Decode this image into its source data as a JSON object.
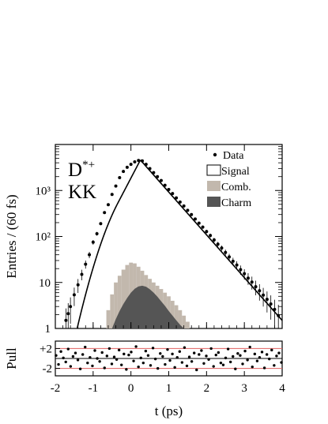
{
  "chart_data": {
    "type": "scatter",
    "xlabel": "t (ps)",
    "ylabel": "Entries / (60 fs)",
    "xlim": [
      -2,
      4
    ],
    "ylim": [
      1,
      10000
    ],
    "yscale": "log",
    "x_ticks": [
      -2,
      -1,
      0,
      1,
      2,
      3,
      4
    ],
    "y_ticks": [
      {
        "value": 1,
        "label": "1"
      },
      {
        "value": 10,
        "label": "10"
      },
      {
        "value": 100,
        "label": "10²"
      },
      {
        "value": 1000,
        "label": "10³"
      }
    ],
    "tag_line1": "D*+",
    "tag_line1_main": "D",
    "tag_line1_sup": "*+",
    "tag_line2": "KK",
    "legend": {
      "position": "top-right",
      "items": [
        {
          "label": "Data",
          "style": "marker"
        },
        {
          "label": "Signal",
          "style": "open-box"
        },
        {
          "label": "Comb.",
          "style": "filled",
          "color": "#c2b8ad"
        },
        {
          "label": "Charm",
          "style": "filled",
          "color": "#555555"
        }
      ]
    },
    "colors": {
      "data": "#000000",
      "fit": "#000000",
      "comb": "#c2b8ad",
      "charm": "#555555",
      "pull_lines": "#e06060"
    },
    "model": {
      "peak_t": 0.25,
      "peak_entries": 4600,
      "left_slope_decades_per_ps": 1.57,
      "right_slope_decades_per_ps": 0.93
    },
    "data_points": [
      {
        "t": -1.72,
        "y": 1.5
      },
      {
        "t": -1.66,
        "y": 2.1
      },
      {
        "t": -1.6,
        "y": 3.0
      },
      {
        "t": -1.5,
        "y": 5.4
      },
      {
        "t": -1.4,
        "y": 8.9
      },
      {
        "t": -1.3,
        "y": 15
      },
      {
        "t": -1.2,
        "y": 25
      },
      {
        "t": -1.1,
        "y": 40
      },
      {
        "t": -1.0,
        "y": 75
      },
      {
        "t": -0.9,
        "y": 115
      },
      {
        "t": -0.8,
        "y": 190
      },
      {
        "t": -0.7,
        "y": 330
      },
      {
        "t": -0.6,
        "y": 490
      },
      {
        "t": -0.5,
        "y": 820
      },
      {
        "t": -0.4,
        "y": 1250
      },
      {
        "t": -0.3,
        "y": 1900
      },
      {
        "t": -0.2,
        "y": 2600
      },
      {
        "t": -0.1,
        "y": 3200
      },
      {
        "t": 0.0,
        "y": 3700
      },
      {
        "t": 0.1,
        "y": 4200
      },
      {
        "t": 0.2,
        "y": 4500
      },
      {
        "t": 0.3,
        "y": 4400
      },
      {
        "t": 0.4,
        "y": 3700
      },
      {
        "t": 0.5,
        "y": 3000
      },
      {
        "t": 0.6,
        "y": 2450
      },
      {
        "t": 0.7,
        "y": 2000
      },
      {
        "t": 0.8,
        "y": 1650
      },
      {
        "t": 0.9,
        "y": 1300
      },
      {
        "t": 1.0,
        "y": 1050
      },
      {
        "t": 1.1,
        "y": 860
      },
      {
        "t": 1.2,
        "y": 690
      },
      {
        "t": 1.3,
        "y": 560
      },
      {
        "t": 1.4,
        "y": 460
      },
      {
        "t": 1.5,
        "y": 370
      },
      {
        "t": 1.6,
        "y": 300
      },
      {
        "t": 1.7,
        "y": 240
      },
      {
        "t": 1.8,
        "y": 195
      },
      {
        "t": 1.9,
        "y": 160
      },
      {
        "t": 2.0,
        "y": 128
      },
      {
        "t": 2.1,
        "y": 105
      },
      {
        "t": 2.2,
        "y": 84
      },
      {
        "t": 2.3,
        "y": 68
      },
      {
        "t": 2.4,
        "y": 56
      },
      {
        "t": 2.5,
        "y": 45
      },
      {
        "t": 2.6,
        "y": 36
      },
      {
        "t": 2.7,
        "y": 29
      },
      {
        "t": 2.8,
        "y": 24
      },
      {
        "t": 2.9,
        "y": 19
      },
      {
        "t": 3.0,
        "y": 15.5
      },
      {
        "t": 3.1,
        "y": 12.4
      },
      {
        "t": 3.2,
        "y": 10.2
      },
      {
        "t": 3.3,
        "y": 8.1
      },
      {
        "t": 3.4,
        "y": 6.6
      },
      {
        "t": 3.5,
        "y": 5.3
      },
      {
        "t": 3.6,
        "y": 4.3
      },
      {
        "t": 3.7,
        "y": 3.4
      },
      {
        "t": 3.8,
        "y": 2.6
      },
      {
        "t": 3.9,
        "y": 1.9
      }
    ],
    "comb_bins": [
      {
        "t": -0.6,
        "y": 2.5
      },
      {
        "t": -0.5,
        "y": 5.5
      },
      {
        "t": -0.4,
        "y": 10
      },
      {
        "t": -0.3,
        "y": 14
      },
      {
        "t": -0.2,
        "y": 19
      },
      {
        "t": -0.1,
        "y": 24
      },
      {
        "t": 0.0,
        "y": 27
      },
      {
        "t": 0.1,
        "y": 26
      },
      {
        "t": 0.2,
        "y": 22
      },
      {
        "t": 0.3,
        "y": 18
      },
      {
        "t": 0.4,
        "y": 14.5
      },
      {
        "t": 0.5,
        "y": 12
      },
      {
        "t": 0.6,
        "y": 10
      },
      {
        "t": 0.7,
        "y": 8.5
      },
      {
        "t": 0.8,
        "y": 7.2
      },
      {
        "t": 0.9,
        "y": 6
      },
      {
        "t": 1.0,
        "y": 5
      },
      {
        "t": 1.1,
        "y": 4
      },
      {
        "t": 1.2,
        "y": 3.2
      },
      {
        "t": 1.3,
        "y": 2.5
      },
      {
        "t": 1.4,
        "y": 1.9
      },
      {
        "t": 1.5,
        "y": 1.4
      }
    ],
    "charm_curve": [
      {
        "t": -0.5,
        "y": 1.0
      },
      {
        "t": -0.4,
        "y": 1.6
      },
      {
        "t": -0.3,
        "y": 2.4
      },
      {
        "t": -0.2,
        "y": 3.4
      },
      {
        "t": -0.1,
        "y": 4.6
      },
      {
        "t": 0.0,
        "y": 6.0
      },
      {
        "t": 0.1,
        "y": 7.3
      },
      {
        "t": 0.2,
        "y": 8.2
      },
      {
        "t": 0.3,
        "y": 8.5
      },
      {
        "t": 0.4,
        "y": 8.1
      },
      {
        "t": 0.5,
        "y": 7.1
      },
      {
        "t": 0.6,
        "y": 6.0
      },
      {
        "t": 0.7,
        "y": 4.9
      },
      {
        "t": 0.8,
        "y": 3.9
      },
      {
        "t": 0.9,
        "y": 3.1
      },
      {
        "t": 1.0,
        "y": 2.4
      },
      {
        "t": 1.1,
        "y": 1.9
      },
      {
        "t": 1.2,
        "y": 1.5
      },
      {
        "t": 1.3,
        "y": 1.2
      },
      {
        "t": 1.4,
        "y": 1.0
      }
    ],
    "pull": {
      "ylabel": "Pull",
      "tick_labels": [
        "+2",
        "-2"
      ],
      "reference_lines": [
        -2,
        0,
        2
      ],
      "ylim": [
        -3.5,
        3.5
      ],
      "values": [
        0.6,
        -1.2,
        1.4,
        0.1,
        -0.7,
        1.9,
        -1.6,
        0.4,
        1.1,
        -0.3,
        -2.1,
        0.8,
        2.3,
        -0.9,
        0.2,
        -1.5,
        1.6,
        0.0,
        -0.6,
        1.2,
        -1.9,
        0.5,
        2.0,
        -1.1,
        0.3,
        -0.2,
        1.7,
        -1.3,
        0.9,
        -2.2,
        0.7,
        1.3,
        -0.5,
        2.4,
        -1.7,
        0.1,
        -0.9,
        1.5,
        0.6,
        -1.4,
        2.1,
        -0.1,
        -2.0,
        1.0,
        0.4,
        -1.2,
        1.8,
        -0.4,
        0.9,
        -1.8,
        0.2,
        1.4,
        -0.8,
        2.2,
        -1.5,
        0.3,
        -0.6,
        1.1,
        -2.3,
        0.8,
        1.6,
        -1.0,
        0.5,
        -0.2,
        2.0,
        -1.6,
        0.7,
        1.2,
        -0.9,
        -1.3,
        0.1,
        1.9,
        -0.7,
        0.4,
        -2.1,
        1.0,
        0.6,
        -1.1,
        1.5,
        -0.3,
        2.3,
        -1.7,
        0.9,
        -0.5,
        0.2,
        1.3,
        -1.9,
        0.8,
        -0.1,
        1.7,
        -1.4,
        0.5,
        1.1,
        -0.8
      ]
    }
  }
}
